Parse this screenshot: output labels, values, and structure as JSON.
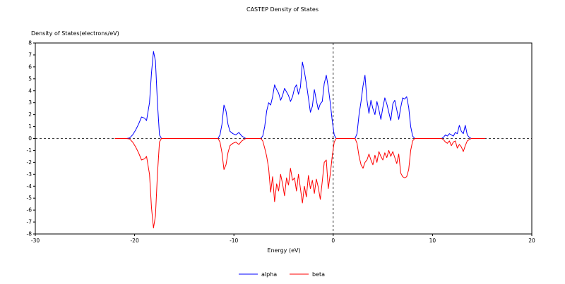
{
  "chart_data": {
    "type": "line",
    "title": "CASTEP Density of States",
    "xlabel": "Energy (eV)",
    "ylabel": "Density of States(electrons/eV)",
    "xlim": [
      -30,
      20
    ],
    "ylim": [
      -8,
      8
    ],
    "xticks": [
      -30,
      -20,
      -10,
      0,
      10,
      20
    ],
    "yticks": [
      8,
      7,
      6,
      5,
      4,
      3,
      2,
      1,
      0,
      -1,
      -2,
      -3,
      -4,
      -5,
      -6,
      -7,
      -8
    ],
    "grid": false,
    "legend_position": "bottom-center",
    "reference_lines": {
      "x": 0,
      "y": 0
    },
    "series": [
      {
        "name": "alpha",
        "color": "#0000ff",
        "points": [
          [
            -22.0,
            0
          ],
          [
            -20.8,
            0
          ],
          [
            -20.5,
            0.05
          ],
          [
            -20.2,
            0.3
          ],
          [
            -19.9,
            0.7
          ],
          [
            -19.6,
            1.2
          ],
          [
            -19.3,
            1.8
          ],
          [
            -19.0,
            1.7
          ],
          [
            -18.8,
            1.5
          ],
          [
            -18.5,
            3.0
          ],
          [
            -18.3,
            5.5
          ],
          [
            -18.1,
            7.3
          ],
          [
            -17.9,
            6.5
          ],
          [
            -17.7,
            3.0
          ],
          [
            -17.5,
            0.3
          ],
          [
            -17.3,
            0
          ],
          [
            -11.6,
            0
          ],
          [
            -11.4,
            0.3
          ],
          [
            -11.2,
            1.2
          ],
          [
            -11.0,
            2.8
          ],
          [
            -10.8,
            2.3
          ],
          [
            -10.6,
            1.2
          ],
          [
            -10.4,
            0.6
          ],
          [
            -10.1,
            0.4
          ],
          [
            -9.8,
            0.3
          ],
          [
            -9.5,
            0.5
          ],
          [
            -9.2,
            0.2
          ],
          [
            -8.8,
            0
          ],
          [
            -7.3,
            0
          ],
          [
            -7.1,
            0.2
          ],
          [
            -6.9,
            1.0
          ],
          [
            -6.7,
            2.3
          ],
          [
            -6.5,
            3.0
          ],
          [
            -6.3,
            2.8
          ],
          [
            -6.1,
            3.5
          ],
          [
            -5.9,
            4.5
          ],
          [
            -5.7,
            4.1
          ],
          [
            -5.5,
            3.8
          ],
          [
            -5.3,
            3.2
          ],
          [
            -5.1,
            3.6
          ],
          [
            -4.9,
            4.2
          ],
          [
            -4.7,
            3.9
          ],
          [
            -4.5,
            3.6
          ],
          [
            -4.3,
            3.1
          ],
          [
            -4.1,
            3.5
          ],
          [
            -3.9,
            4.2
          ],
          [
            -3.7,
            4.5
          ],
          [
            -3.5,
            3.7
          ],
          [
            -3.3,
            4.3
          ],
          [
            -3.1,
            6.4
          ],
          [
            -2.9,
            5.6
          ],
          [
            -2.7,
            4.6
          ],
          [
            -2.5,
            3.4
          ],
          [
            -2.3,
            2.2
          ],
          [
            -2.1,
            2.7
          ],
          [
            -1.9,
            4.1
          ],
          [
            -1.7,
            3.2
          ],
          [
            -1.5,
            2.4
          ],
          [
            -1.3,
            2.9
          ],
          [
            -1.1,
            3.1
          ],
          [
            -0.9,
            4.6
          ],
          [
            -0.7,
            5.3
          ],
          [
            -0.5,
            4.3
          ],
          [
            -0.3,
            3.0
          ],
          [
            -0.1,
            1.5
          ],
          [
            0.1,
            0.3
          ],
          [
            0.3,
            0
          ],
          [
            2.2,
            0
          ],
          [
            2.4,
            0.4
          ],
          [
            2.6,
            2.0
          ],
          [
            2.8,
            3.1
          ],
          [
            3.0,
            4.4
          ],
          [
            3.2,
            5.3
          ],
          [
            3.4,
            3.2
          ],
          [
            3.6,
            2.1
          ],
          [
            3.8,
            3.2
          ],
          [
            4.0,
            2.5
          ],
          [
            4.2,
            2.0
          ],
          [
            4.4,
            3.1
          ],
          [
            4.6,
            2.4
          ],
          [
            4.8,
            1.6
          ],
          [
            5.0,
            2.6
          ],
          [
            5.2,
            3.4
          ],
          [
            5.4,
            2.9
          ],
          [
            5.6,
            2.2
          ],
          [
            5.8,
            1.5
          ],
          [
            6.0,
            2.9
          ],
          [
            6.2,
            3.2
          ],
          [
            6.4,
            2.4
          ],
          [
            6.6,
            1.6
          ],
          [
            6.8,
            2.6
          ],
          [
            7.0,
            3.4
          ],
          [
            7.2,
            3.3
          ],
          [
            7.4,
            3.5
          ],
          [
            7.6,
            2.6
          ],
          [
            7.8,
            1.0
          ],
          [
            8.0,
            0.2
          ],
          [
            8.2,
            0
          ],
          [
            10.9,
            0
          ],
          [
            11.1,
            0.1
          ],
          [
            11.3,
            0.3
          ],
          [
            11.5,
            0.2
          ],
          [
            11.7,
            0.4
          ],
          [
            11.9,
            0.3
          ],
          [
            12.1,
            0.2
          ],
          [
            12.3,
            0.5
          ],
          [
            12.5,
            0.4
          ],
          [
            12.7,
            1.1
          ],
          [
            12.9,
            0.6
          ],
          [
            13.1,
            0.4
          ],
          [
            13.3,
            1.1
          ],
          [
            13.5,
            0.3
          ],
          [
            13.7,
            0.1
          ],
          [
            13.9,
            0
          ],
          [
            15.3,
            0
          ]
        ]
      },
      {
        "name": "beta",
        "color": "#ff0000",
        "points": [
          [
            -22.0,
            0
          ],
          [
            -20.8,
            0
          ],
          [
            -20.5,
            -0.05
          ],
          [
            -20.2,
            -0.3
          ],
          [
            -19.9,
            -0.7
          ],
          [
            -19.6,
            -1.2
          ],
          [
            -19.3,
            -1.8
          ],
          [
            -19.0,
            -1.7
          ],
          [
            -18.8,
            -1.5
          ],
          [
            -18.5,
            -3.0
          ],
          [
            -18.3,
            -5.8
          ],
          [
            -18.1,
            -7.5
          ],
          [
            -17.9,
            -6.5
          ],
          [
            -17.7,
            -3.0
          ],
          [
            -17.5,
            -0.3
          ],
          [
            -17.3,
            0
          ],
          [
            -11.6,
            0
          ],
          [
            -11.4,
            -0.3
          ],
          [
            -11.2,
            -1.2
          ],
          [
            -11.0,
            -2.6
          ],
          [
            -10.8,
            -2.2
          ],
          [
            -10.6,
            -1.2
          ],
          [
            -10.4,
            -0.6
          ],
          [
            -10.1,
            -0.4
          ],
          [
            -9.8,
            -0.3
          ],
          [
            -9.5,
            -0.5
          ],
          [
            -9.2,
            -0.2
          ],
          [
            -8.8,
            0
          ],
          [
            -7.3,
            0
          ],
          [
            -7.1,
            -0.2
          ],
          [
            -6.9,
            -0.8
          ],
          [
            -6.7,
            -1.5
          ],
          [
            -6.5,
            -2.5
          ],
          [
            -6.3,
            -4.5
          ],
          [
            -6.1,
            -3.2
          ],
          [
            -5.9,
            -5.3
          ],
          [
            -5.7,
            -3.8
          ],
          [
            -5.5,
            -4.4
          ],
          [
            -5.3,
            -3.0
          ],
          [
            -5.1,
            -3.8
          ],
          [
            -4.9,
            -4.8
          ],
          [
            -4.7,
            -3.3
          ],
          [
            -4.5,
            -3.9
          ],
          [
            -4.3,
            -2.5
          ],
          [
            -4.1,
            -3.5
          ],
          [
            -3.9,
            -3.3
          ],
          [
            -3.7,
            -4.4
          ],
          [
            -3.5,
            -3.0
          ],
          [
            -3.3,
            -4.2
          ],
          [
            -3.1,
            -5.4
          ],
          [
            -2.9,
            -4.0
          ],
          [
            -2.7,
            -4.9
          ],
          [
            -2.5,
            -3.1
          ],
          [
            -2.3,
            -4.2
          ],
          [
            -2.1,
            -3.5
          ],
          [
            -1.9,
            -4.6
          ],
          [
            -1.7,
            -3.4
          ],
          [
            -1.5,
            -4.1
          ],
          [
            -1.3,
            -5.1
          ],
          [
            -1.1,
            -3.6
          ],
          [
            -0.9,
            -2.0
          ],
          [
            -0.7,
            -1.8
          ],
          [
            -0.5,
            -4.2
          ],
          [
            -0.3,
            -3.0
          ],
          [
            -0.1,
            -1.5
          ],
          [
            0.1,
            -0.3
          ],
          [
            0.3,
            0
          ],
          [
            2.2,
            0
          ],
          [
            2.4,
            -0.4
          ],
          [
            2.6,
            -1.5
          ],
          [
            2.8,
            -2.2
          ],
          [
            3.0,
            -2.5
          ],
          [
            3.2,
            -2.0
          ],
          [
            3.4,
            -1.8
          ],
          [
            3.6,
            -1.3
          ],
          [
            3.8,
            -1.8
          ],
          [
            4.0,
            -2.2
          ],
          [
            4.2,
            -1.4
          ],
          [
            4.4,
            -2.0
          ],
          [
            4.6,
            -1.1
          ],
          [
            4.8,
            -1.5
          ],
          [
            5.0,
            -1.8
          ],
          [
            5.2,
            -1.2
          ],
          [
            5.4,
            -1.6
          ],
          [
            5.6,
            -1.0
          ],
          [
            5.8,
            -1.5
          ],
          [
            6.0,
            -1.1
          ],
          [
            6.2,
            -1.6
          ],
          [
            6.4,
            -2.1
          ],
          [
            6.6,
            -1.3
          ],
          [
            6.8,
            -2.9
          ],
          [
            7.0,
            -3.2
          ],
          [
            7.2,
            -3.3
          ],
          [
            7.4,
            -3.2
          ],
          [
            7.6,
            -2.6
          ],
          [
            7.8,
            -1.0
          ],
          [
            8.0,
            -0.2
          ],
          [
            8.2,
            0
          ],
          [
            10.9,
            0
          ],
          [
            11.1,
            -0.1
          ],
          [
            11.3,
            -0.3
          ],
          [
            11.5,
            -0.4
          ],
          [
            11.7,
            -0.2
          ],
          [
            11.9,
            -0.6
          ],
          [
            12.1,
            -0.3
          ],
          [
            12.3,
            -0.2
          ],
          [
            12.5,
            -0.8
          ],
          [
            12.7,
            -0.5
          ],
          [
            12.9,
            -0.7
          ],
          [
            13.1,
            -1.1
          ],
          [
            13.3,
            -0.6
          ],
          [
            13.5,
            -0.2
          ],
          [
            13.7,
            -0.1
          ],
          [
            13.9,
            0
          ],
          [
            15.3,
            0
          ]
        ]
      }
    ]
  }
}
